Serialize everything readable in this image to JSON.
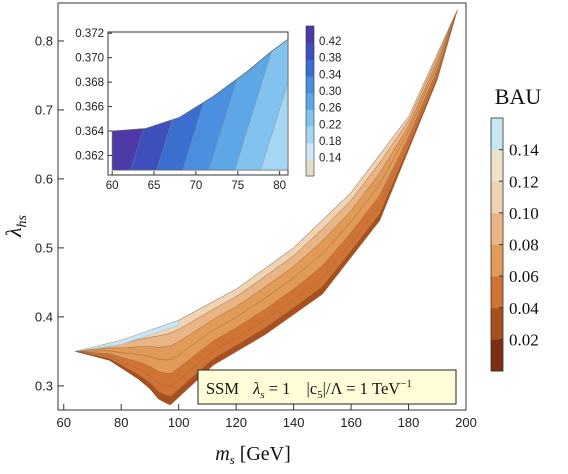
{
  "chart_data": [
    {
      "type": "heatmap",
      "title": "",
      "xlabel": "m_s [GeV]",
      "ylabel": "λ_hs",
      "xlim": [
        58,
        200
      ],
      "ylim": [
        0.265,
        0.855
      ],
      "xticks": [
        60,
        80,
        100,
        120,
        140,
        160,
        180,
        200
      ],
      "yticks": [
        0.3,
        0.4,
        0.5,
        0.6,
        0.7,
        0.8
      ],
      "annotation": {
        "prefix": "SSM",
        "lambda_text": "λ",
        "lambda_sub": "s",
        "lambda_val": " = 1",
        "c5_pre": "|c",
        "c5_sub": "5",
        "c5_post": "|/Λ = 1 TeV",
        "c5_sup": "−1"
      },
      "colorbar": {
        "title": "BAU",
        "ticks": [
          "0.14",
          "0.12",
          "0.10",
          "0.08",
          "0.06",
          "0.04",
          "0.02"
        ],
        "colors": [
          "#7a2f12",
          "#a84f1f",
          "#cf7434",
          "#e19a58",
          "#e9b585",
          "#efd3b5",
          "#eee2c8",
          "#c6e7f5"
        ]
      },
      "region": {
        "upper_boundary": [
          [
            64,
            0.35
          ],
          [
            80,
            0.366
          ],
          [
            100,
            0.395
          ],
          [
            120,
            0.44
          ],
          [
            140,
            0.5
          ],
          [
            160,
            0.58
          ],
          [
            180,
            0.69
          ],
          [
            197,
            0.845
          ]
        ],
        "lower_boundary": [
          [
            64,
            0.35
          ],
          [
            76,
            0.337
          ],
          [
            86,
            0.31
          ],
          [
            90,
            0.296
          ],
          [
            93,
            0.281
          ],
          [
            97,
            0.272
          ],
          [
            112,
            0.33
          ],
          [
            130,
            0.374
          ],
          [
            150,
            0.433
          ],
          [
            170,
            0.54
          ],
          [
            190,
            0.744
          ],
          [
            197,
            0.845
          ]
        ]
      }
    },
    {
      "type": "heatmap",
      "title": "",
      "xlim": [
        59.5,
        81
      ],
      "ylim": [
        0.3604,
        0.3721
      ],
      "xticks": [
        60,
        65,
        70,
        75,
        80
      ],
      "yticks": [
        0.362,
        0.364,
        0.366,
        0.368,
        0.37,
        0.372
      ],
      "colorbar": {
        "ticks": [
          "0.42",
          "0.38",
          "0.34",
          "0.30",
          "0.26",
          "0.22",
          "0.18",
          "0.14"
        ],
        "colors": [
          "#e5dccb",
          "#cbe9f8",
          "#a5d6f3",
          "#82c2ee",
          "#5da7e6",
          "#4a8fe0",
          "#3b6fcf",
          "#3c4fbd",
          "#4d3aa8"
        ]
      },
      "region": {
        "upper_boundary": [
          [
            60,
            0.364
          ],
          [
            64,
            0.3642
          ],
          [
            68,
            0.3651
          ],
          [
            72,
            0.3668
          ],
          [
            76,
            0.3688
          ],
          [
            79,
            0.3705
          ],
          [
            81,
            0.3715
          ]
        ],
        "lower_y": 0.3608
      }
    }
  ]
}
